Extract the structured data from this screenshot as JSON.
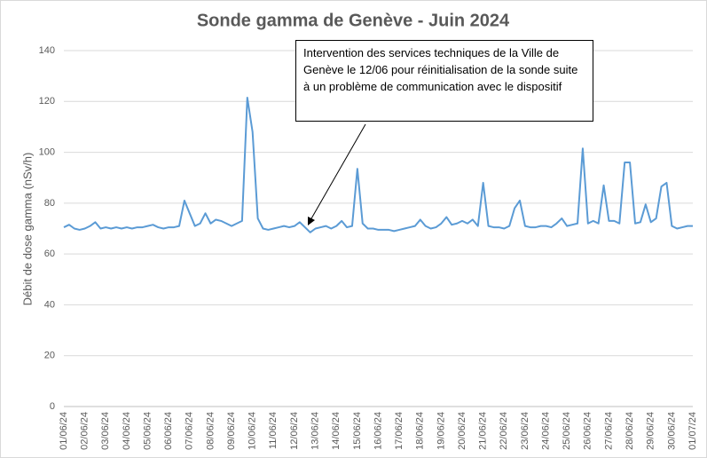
{
  "chart_data": {
    "type": "line",
    "title": "Sonde gamma de Genève - Juin 2024",
    "y_label": "Débit de dose gamma (nSv/h)",
    "annotation": "Intervention des services techniques de la Ville de Genève le 12/06 pour réinitialisation de la sonde suite à un problème de communication avec le dispositif",
    "categories": [
      "01/06/24",
      null,
      null,
      null,
      "02/06/24",
      null,
      null,
      null,
      "03/06/24",
      null,
      null,
      null,
      "04/06/24",
      null,
      null,
      null,
      "05/06/24",
      null,
      null,
      null,
      "06/06/24",
      null,
      null,
      null,
      "07/06/24",
      null,
      null,
      null,
      "08/06/24",
      null,
      null,
      null,
      "09/06/24",
      null,
      null,
      null,
      "10/06/24",
      null,
      null,
      null,
      "11/06/24",
      null,
      null,
      null,
      "12/06/24",
      null,
      null,
      null,
      "13/06/24",
      null,
      null,
      null,
      "14/06/24",
      null,
      null,
      null,
      "15/06/24",
      null,
      null,
      null,
      "16/06/24",
      null,
      null,
      null,
      "17/06/24",
      null,
      null,
      null,
      "18/06/24",
      null,
      null,
      null,
      "19/06/24",
      null,
      null,
      null,
      "20/06/24",
      null,
      null,
      null,
      "21/06/24",
      null,
      null,
      null,
      "22/06/24",
      null,
      null,
      null,
      "23/06/24",
      null,
      null,
      null,
      "24/06/24",
      null,
      null,
      null,
      "25/06/24",
      null,
      null,
      null,
      "26/06/24",
      null,
      null,
      null,
      "27/06/24",
      null,
      null,
      null,
      "28/06/24",
      null,
      null,
      null,
      "29/06/24",
      null,
      null,
      null,
      "30/06/24",
      null,
      null,
      null,
      "01/07/24"
    ],
    "series": [
      {
        "name": "Débit de dose gamma",
        "color": "#5b9bd5",
        "values": [
          70.5,
          71.5,
          70,
          69.5,
          70,
          71,
          72.5,
          70,
          70.5,
          70,
          70.5,
          70,
          70.5,
          70,
          70.5,
          70.5,
          71,
          71.5,
          70.5,
          70,
          70.5,
          70.5,
          71,
          81,
          76,
          71,
          72,
          76,
          72,
          73.5,
          73,
          72,
          71,
          72,
          73,
          121.5,
          108,
          74,
          70,
          69.5,
          70,
          70.5,
          71,
          70.5,
          71,
          72.5,
          70.5,
          68.5,
          70,
          70.5,
          71,
          70,
          71,
          73,
          70.5,
          71,
          93.5,
          72,
          70,
          70,
          69.5,
          69.5,
          69.5,
          69,
          69.5,
          70,
          70.5,
          71,
          73.5,
          71,
          70,
          70.5,
          72,
          74.5,
          71.5,
          72,
          73,
          72,
          73.5,
          71,
          88,
          71,
          70.5,
          70.5,
          70,
          71,
          78,
          81,
          71,
          70.5,
          70.5,
          71,
          71,
          70.5,
          72,
          74,
          71,
          71.5,
          72,
          101.5,
          72,
          73,
          72,
          87,
          73,
          73,
          72,
          96,
          96,
          72,
          72.5,
          79.5,
          72.5,
          74,
          86.5,
          88,
          71,
          70,
          70.5,
          71,
          71
        ]
      }
    ],
    "ylim": [
      0,
      140
    ],
    "yticks": [
      0,
      20,
      40,
      60,
      80,
      100,
      120,
      140
    ],
    "grid": true
  }
}
